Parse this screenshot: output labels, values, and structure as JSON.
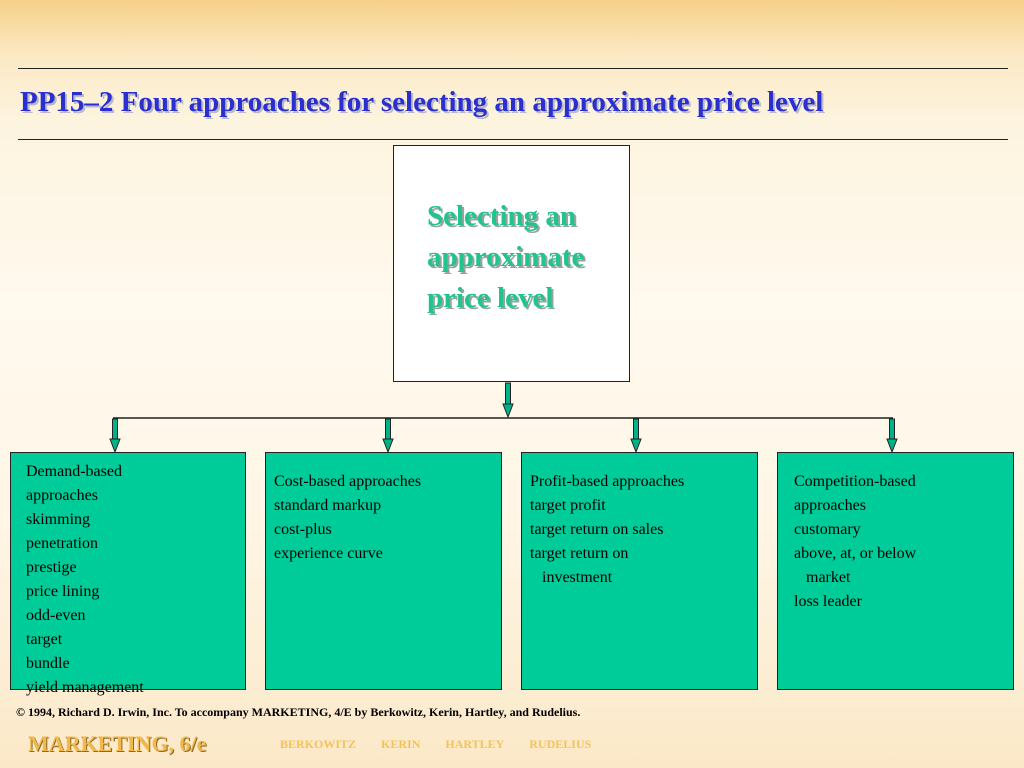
{
  "title": "PP15–2  Four approaches for selecting an approximate price level",
  "top_box": {
    "text": "Selecting an\napproximate\nprice level"
  },
  "approaches": [
    {
      "heading": "Demand-based",
      "items": [
        "approaches",
        "skimming",
        "penetration",
        "prestige",
        "price lining",
        "odd-even",
        "target",
        "bundle",
        "yield management"
      ]
    },
    {
      "heading": "Cost-based approaches",
      "items": [
        "standard markup",
        "cost-plus",
        "experience curve"
      ]
    },
    {
      "heading": "Profit-based approaches",
      "items": [
        "target profit",
        "target return on sales",
        "target return on",
        "   investment"
      ]
    },
    {
      "heading": "Competition-based",
      "items": [
        "approaches",
        "customary",
        "above, at, or below",
        "   market",
        "loss leader"
      ]
    }
  ],
  "footer": {
    "copyright": "© 1994, Richard D. Irwin, Inc. To accompany MARKETING, 4/E by Berkowitz, Kerin, Hartley, and Rudelius.",
    "brand": "MARKETING, 6/e",
    "authors": [
      "BERKOWITZ",
      "KERIN",
      "HARTLEY",
      "RUDELIUS"
    ]
  },
  "colors": {
    "title": "#2c2fd0",
    "top_box_text": "#22c48e",
    "approach_box": "#00cc99",
    "arrow": "#00b386",
    "brand": "#f2b84b"
  }
}
